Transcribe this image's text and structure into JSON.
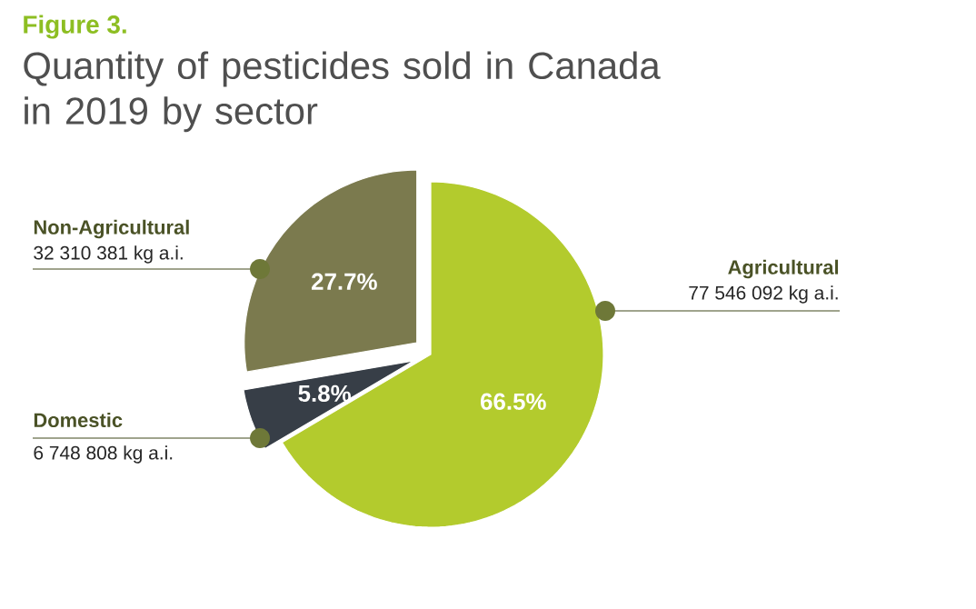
{
  "chart_data": {
    "type": "pie",
    "subtitle": "Figure 3.",
    "title": "Quantity of pesticides sold in Canada in 2019 by sector",
    "categories": [
      "Agricultural",
      "Domestic",
      "Non-Agricultural"
    ],
    "values": [
      66.5,
      5.8,
      27.7
    ],
    "value_labels": [
      "66.5%",
      "5.8%",
      "27.7%"
    ],
    "colors": [
      "#b3cb2d",
      "#373e47",
      "#7b7a4e"
    ],
    "annotations": [
      "77 546 092 kg a.i.",
      "6 748 808 kg a.i.",
      "32 310 381 kg a.i."
    ]
  }
}
